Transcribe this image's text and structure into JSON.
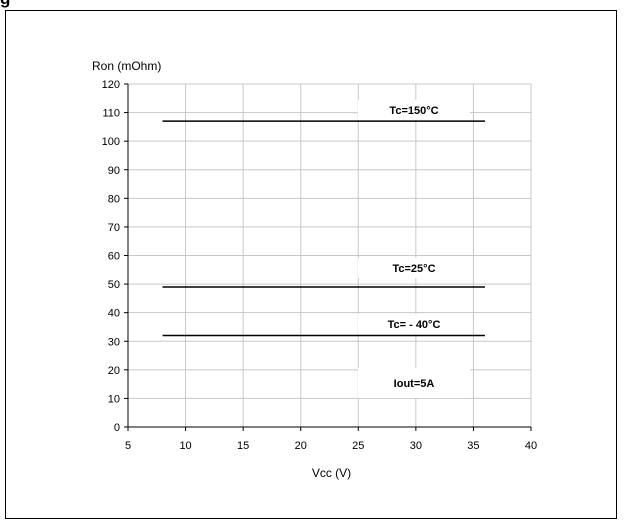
{
  "heading": "g",
  "chart_data": {
    "type": "line",
    "title": "",
    "xlabel": "Vcc (V)",
    "ylabel": "Ron (mOhm)",
    "xlim": [
      5,
      40
    ],
    "ylim": [
      0,
      120
    ],
    "x_ticks": [
      5,
      10,
      15,
      20,
      25,
      30,
      35,
      40
    ],
    "y_ticks": [
      0,
      10,
      20,
      30,
      40,
      50,
      60,
      70,
      80,
      90,
      100,
      110,
      120
    ],
    "grid": true,
    "series": [
      {
        "name": "Tc=150°C",
        "x": [
          8,
          36
        ],
        "values": [
          107,
          107
        ]
      },
      {
        "name": "Tc=25°C",
        "x": [
          8,
          36
        ],
        "values": [
          49,
          49
        ]
      },
      {
        "name": "Tc= - 40°C",
        "x": [
          8,
          36
        ],
        "values": [
          32,
          32
        ]
      }
    ],
    "annotations": [
      "Iout=5A"
    ]
  }
}
